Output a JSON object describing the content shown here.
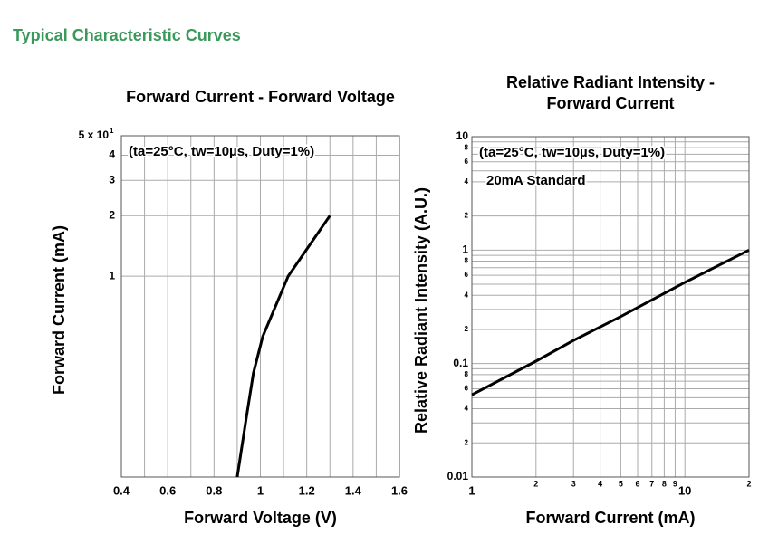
{
  "header": {
    "title": "Typical Characteristic Curves"
  },
  "chart_data": [
    {
      "type": "line",
      "title": "Forward Current - Forward Voltage",
      "xlabel": "Forward Voltage (V)",
      "ylabel": "Forward Current (mA)",
      "annotation": "(ta=25°C, tw=10µs, Duty=1%)",
      "xlim": [
        0.4,
        1.6
      ],
      "xticks": [
        0.4,
        0.6,
        0.8,
        1.0,
        1.2,
        1.4,
        1.6
      ],
      "xminor": [
        0.5,
        0.7,
        0.9,
        1.1,
        1.3,
        1.5
      ],
      "ylim": [
        0.1,
        5
      ],
      "ylog": true,
      "yticks": [
        1,
        2,
        3,
        4,
        {
          "value": 5,
          "label": "5 x 10",
          "label_exponent": "1"
        }
      ],
      "grid": true,
      "color": "#000000",
      "x": [
        0.9,
        0.94,
        0.97,
        1.01,
        1.12,
        1.3
      ],
      "values": [
        0.1,
        0.2,
        0.33,
        0.5,
        1,
        2
      ]
    },
    {
      "type": "line",
      "title": "Relative Radiant Intensity -\nForward Current",
      "xlabel": "Forward Current (mA)",
      "ylabel": "Relative Radiant Intensity (A.U.)",
      "annotation": "(ta=25°C, tw=10µs, Duty=1%)",
      "annotation2": "20mA Standard",
      "xlim": [
        1,
        20
      ],
      "xlog": true,
      "xticks": [
        1,
        2,
        3,
        4,
        5,
        6,
        7,
        8,
        9,
        10,
        {
          "value": 20,
          "label": "2"
        }
      ],
      "ylim": [
        0.01,
        10
      ],
      "ylog": true,
      "yticks": [
        0.01,
        {
          "value": 0.02,
          "label": "2"
        },
        {
          "value": 0.04,
          "label": "4"
        },
        {
          "value": 0.06,
          "label": "6"
        },
        {
          "value": 0.08,
          "label": "8"
        },
        0.1,
        {
          "value": 0.2,
          "label": "2"
        },
        {
          "value": 0.4,
          "label": "4"
        },
        {
          "value": 0.6,
          "label": "6"
        },
        {
          "value": 0.8,
          "label": "8"
        },
        1,
        {
          "value": 2,
          "label": "2"
        },
        {
          "value": 4,
          "label": "4"
        },
        {
          "value": 6,
          "label": "6"
        },
        {
          "value": 8,
          "label": "8"
        },
        10
      ],
      "yminor": [
        0.03,
        0.05,
        0.07,
        0.09,
        0.3,
        0.5,
        0.7,
        0.9,
        3,
        5,
        7,
        9
      ],
      "grid": true,
      "color": "#000000",
      "x": [
        1,
        2,
        3,
        5,
        10,
        20
      ],
      "values": [
        0.053,
        0.105,
        0.16,
        0.26,
        0.52,
        1
      ]
    }
  ]
}
